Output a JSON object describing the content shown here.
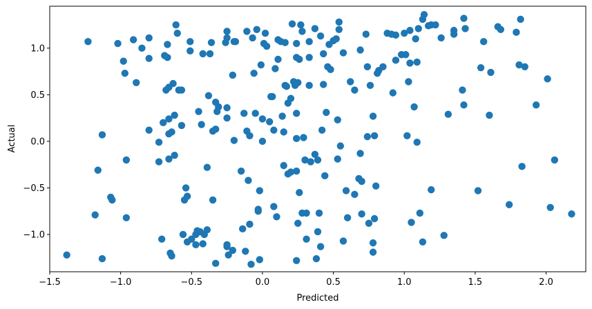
{
  "chart_data": {
    "type": "scatter",
    "xlabel": "Predicted",
    "ylabel": "Actual",
    "xlim": [
      -1.5,
      2.28
    ],
    "ylim": [
      -1.4,
      1.45
    ],
    "xticks": [
      -1.5,
      -1.0,
      -0.5,
      0.0,
      0.5,
      1.0,
      1.5,
      2.0
    ],
    "xtick_labels": [
      "−1.5",
      "−1.0",
      "−0.5",
      "0.0",
      "0.5",
      "1.0",
      "1.5",
      "2.0"
    ],
    "yticks": [
      -1.0,
      -0.5,
      0.0,
      0.5,
      1.0
    ],
    "ytick_labels": [
      "−1.0",
      "−0.5",
      "0.0",
      "0.5",
      "1.0"
    ],
    "grid": false,
    "marker_color": "#1f77b4",
    "points": [
      {
        "x": -1.38,
        "y": -1.22
      },
      {
        "x": -1.23,
        "y": 1.07
      },
      {
        "x": -1.18,
        "y": -0.79
      },
      {
        "x": -1.16,
        "y": -0.31
      },
      {
        "x": -1.13,
        "y": 0.07
      },
      {
        "x": -1.13,
        "y": -1.26
      },
      {
        "x": -1.07,
        "y": -0.6
      },
      {
        "x": -1.06,
        "y": -0.63
      },
      {
        "x": -1.02,
        "y": 1.05
      },
      {
        "x": -0.98,
        "y": 0.86
      },
      {
        "x": -0.97,
        "y": 0.73
      },
      {
        "x": -0.96,
        "y": -0.2
      },
      {
        "x": -0.96,
        "y": -0.82
      },
      {
        "x": -0.91,
        "y": 1.09
      },
      {
        "x": -0.89,
        "y": 0.63
      },
      {
        "x": -0.85,
        "y": 1.0
      },
      {
        "x": -0.8,
        "y": 1.11
      },
      {
        "x": -0.8,
        "y": 0.89
      },
      {
        "x": -0.8,
        "y": 0.12
      },
      {
        "x": -0.73,
        "y": -0.01
      },
      {
        "x": -0.73,
        "y": -0.22
      },
      {
        "x": -0.71,
        "y": -1.05
      },
      {
        "x": -0.7,
        "y": 0.2
      },
      {
        "x": -0.69,
        "y": 0.92
      },
      {
        "x": -0.68,
        "y": 0.55
      },
      {
        "x": -0.67,
        "y": 0.9
      },
      {
        "x": -0.67,
        "y": 1.04
      },
      {
        "x": -0.66,
        "y": 0.58
      },
      {
        "x": -0.66,
        "y": 0.24
      },
      {
        "x": -0.66,
        "y": 0.08
      },
      {
        "x": -0.66,
        "y": -0.19
      },
      {
        "x": -0.65,
        "y": -1.2
      },
      {
        "x": -0.64,
        "y": 0.1
      },
      {
        "x": -0.64,
        "y": -1.23
      },
      {
        "x": -0.63,
        "y": 0.62
      },
      {
        "x": -0.62,
        "y": 0.28
      },
      {
        "x": -0.62,
        "y": -0.15
      },
      {
        "x": -0.61,
        "y": 1.25
      },
      {
        "x": -0.6,
        "y": 1.16
      },
      {
        "x": -0.59,
        "y": 0.55
      },
      {
        "x": -0.57,
        "y": 0.55
      },
      {
        "x": -0.57,
        "y": 0.17
      },
      {
        "x": -0.56,
        "y": -1.0
      },
      {
        "x": -0.55,
        "y": -0.63
      },
      {
        "x": -0.54,
        "y": -0.5
      },
      {
        "x": -0.53,
        "y": -0.59
      },
      {
        "x": -0.53,
        "y": -1.08
      },
      {
        "x": -0.51,
        "y": 1.07
      },
      {
        "x": -0.51,
        "y": 0.97
      },
      {
        "x": -0.5,
        "y": -1.05
      },
      {
        "x": -0.47,
        "y": -1.11
      },
      {
        "x": -0.47,
        "y": -1.0
      },
      {
        "x": -0.46,
        "y": -0.96
      },
      {
        "x": -0.45,
        "y": 0.32
      },
      {
        "x": -0.44,
        "y": -0.97
      },
      {
        "x": -0.43,
        "y": 0.18
      },
      {
        "x": -0.42,
        "y": 0.94
      },
      {
        "x": -0.42,
        "y": -1.1
      },
      {
        "x": -0.41,
        "y": -1.0
      },
      {
        "x": -0.39,
        "y": -0.95
      },
      {
        "x": -0.39,
        "y": -0.28
      },
      {
        "x": -0.38,
        "y": 0.49
      },
      {
        "x": -0.37,
        "y": 0.94
      },
      {
        "x": -0.36,
        "y": 1.06
      },
      {
        "x": -0.35,
        "y": 0.11
      },
      {
        "x": -0.35,
        "y": -0.63
      },
      {
        "x": -0.33,
        "y": -1.31
      },
      {
        "x": -0.33,
        "y": 0.42
      },
      {
        "x": -0.33,
        "y": 0.13
      },
      {
        "x": -0.32,
        "y": 0.32
      },
      {
        "x": -0.31,
        "y": 0.37
      },
      {
        "x": -0.26,
        "y": 1.06
      },
      {
        "x": -0.25,
        "y": 1.18
      },
      {
        "x": -0.25,
        "y": 1.11
      },
      {
        "x": -0.25,
        "y": 0.25
      },
      {
        "x": -0.25,
        "y": 0.36
      },
      {
        "x": -0.25,
        "y": -1.11
      },
      {
        "x": -0.25,
        "y": -1.13
      },
      {
        "x": -0.24,
        "y": -1.22
      },
      {
        "x": -0.21,
        "y": 0.71
      },
      {
        "x": -0.21,
        "y": -1.17
      },
      {
        "x": -0.2,
        "y": 0.01
      },
      {
        "x": -0.2,
        "y": 1.07
      },
      {
        "x": -0.19,
        "y": 1.07
      },
      {
        "x": -0.15,
        "y": -0.32
      },
      {
        "x": -0.14,
        "y": -0.94
      },
      {
        "x": -0.13,
        "y": 0.3
      },
      {
        "x": -0.12,
        "y": -1.18
      },
      {
        "x": -0.11,
        "y": 1.18
      },
      {
        "x": -0.11,
        "y": 0.11
      },
      {
        "x": -0.1,
        "y": -0.42
      },
      {
        "x": -0.09,
        "y": 0.06
      },
      {
        "x": -0.09,
        "y": -0.89
      },
      {
        "x": -0.08,
        "y": -1.32
      },
      {
        "x": -0.07,
        "y": 1.11
      },
      {
        "x": -0.06,
        "y": 0.73
      },
      {
        "x": -0.05,
        "y": 0.3
      },
      {
        "x": -0.04,
        "y": 1.2
      },
      {
        "x": -0.03,
        "y": -0.73
      },
      {
        "x": -0.03,
        "y": -0.75
      },
      {
        "x": -0.02,
        "y": -0.53
      },
      {
        "x": -0.02,
        "y": -1.27
      },
      {
        "x": -0.01,
        "y": 0.82
      },
      {
        "x": 0.0,
        "y": 0.24
      },
      {
        "x": 0.0,
        "y": 0.0
      },
      {
        "x": 0.01,
        "y": 1.05
      },
      {
        "x": 0.02,
        "y": 1.16
      },
      {
        "x": 0.03,
        "y": 1.02
      },
      {
        "x": 0.05,
        "y": 0.21
      },
      {
        "x": 0.06,
        "y": 0.48
      },
      {
        "x": 0.07,
        "y": 0.48
      },
      {
        "x": 0.08,
        "y": 0.12
      },
      {
        "x": 0.08,
        "y": -0.7
      },
      {
        "x": 0.09,
        "y": 0.78
      },
      {
        "x": 0.1,
        "y": -0.81
      },
      {
        "x": 0.11,
        "y": 1.09
      },
      {
        "x": 0.11,
        "y": 0.88
      },
      {
        "x": 0.13,
        "y": 1.07
      },
      {
        "x": 0.14,
        "y": 0.27
      },
      {
        "x": 0.15,
        "y": 0.1
      },
      {
        "x": 0.15,
        "y": -0.26
      },
      {
        "x": 0.16,
        "y": 1.06
      },
      {
        "x": 0.16,
        "y": 0.6
      },
      {
        "x": 0.17,
        "y": 0.59
      },
      {
        "x": 0.18,
        "y": 0.41
      },
      {
        "x": 0.18,
        "y": -0.35
      },
      {
        "x": 0.2,
        "y": 0.46
      },
      {
        "x": 0.2,
        "y": -0.33
      },
      {
        "x": 0.21,
        "y": 1.26
      },
      {
        "x": 0.22,
        "y": 0.64
      },
      {
        "x": 0.23,
        "y": 0.6
      },
      {
        "x": 0.24,
        "y": 1.05
      },
      {
        "x": 0.24,
        "y": 0.9
      },
      {
        "x": 0.24,
        "y": 0.3
      },
      {
        "x": 0.24,
        "y": 0.03
      },
      {
        "x": 0.24,
        "y": -0.32
      },
      {
        "x": 0.24,
        "y": -1.28
      },
      {
        "x": 0.25,
        "y": 0.63
      },
      {
        "x": 0.25,
        "y": -0.88
      },
      {
        "x": 0.26,
        "y": 0.88
      },
      {
        "x": 0.26,
        "y": -0.55
      },
      {
        "x": 0.27,
        "y": 1.25
      },
      {
        "x": 0.28,
        "y": 1.18
      },
      {
        "x": 0.28,
        "y": -0.77
      },
      {
        "x": 0.29,
        "y": 0.04
      },
      {
        "x": 0.3,
        "y": -0.2
      },
      {
        "x": 0.31,
        "y": -1.05
      },
      {
        "x": 0.31,
        "y": -0.77
      },
      {
        "x": 0.33,
        "y": 1.07
      },
      {
        "x": 0.33,
        "y": 0.9
      },
      {
        "x": 0.33,
        "y": 0.6
      },
      {
        "x": 0.34,
        "y": -0.22
      },
      {
        "x": 0.37,
        "y": 1.21
      },
      {
        "x": 0.37,
        "y": -0.14
      },
      {
        "x": 0.38,
        "y": -1.26
      },
      {
        "x": 0.39,
        "y": -0.2
      },
      {
        "x": 0.39,
        "y": -0.97
      },
      {
        "x": 0.4,
        "y": -0.77
      },
      {
        "x": 0.41,
        "y": 1.13
      },
      {
        "x": 0.41,
        "y": -1.13
      },
      {
        "x": 0.42,
        "y": 0.12
      },
      {
        "x": 0.43,
        "y": 0.61
      },
      {
        "x": 0.43,
        "y": 0.94
      },
      {
        "x": 0.44,
        "y": -0.37
      },
      {
        "x": 0.45,
        "y": 0.31
      },
      {
        "x": 0.46,
        "y": 0.8
      },
      {
        "x": 0.47,
        "y": 1.04
      },
      {
        "x": 0.48,
        "y": 0.77
      },
      {
        "x": 0.5,
        "y": 1.08
      },
      {
        "x": 0.52,
        "y": 1.1
      },
      {
        "x": 0.53,
        "y": -0.19
      },
      {
        "x": 0.53,
        "y": 0.23
      },
      {
        "x": 0.54,
        "y": 1.2
      },
      {
        "x": 0.54,
        "y": 1.28
      },
      {
        "x": 0.55,
        "y": -0.05
      },
      {
        "x": 0.57,
        "y": 0.95
      },
      {
        "x": 0.57,
        "y": -1.07
      },
      {
        "x": 0.59,
        "y": -0.53
      },
      {
        "x": 0.6,
        "y": -0.82
      },
      {
        "x": 0.62,
        "y": 0.64
      },
      {
        "x": 0.65,
        "y": 0.55
      },
      {
        "x": 0.65,
        "y": -0.57
      },
      {
        "x": 0.68,
        "y": -0.4
      },
      {
        "x": 0.69,
        "y": 0.98
      },
      {
        "x": 0.69,
        "y": -0.13
      },
      {
        "x": 0.7,
        "y": -0.43
      },
      {
        "x": 0.7,
        "y": -0.78
      },
      {
        "x": 0.73,
        "y": 1.15
      },
      {
        "x": 0.74,
        "y": 0.05
      },
      {
        "x": 0.74,
        "y": 0.8
      },
      {
        "x": 0.75,
        "y": -0.88
      },
      {
        "x": 0.76,
        "y": 0.6
      },
      {
        "x": 0.78,
        "y": 0.27
      },
      {
        "x": 0.78,
        "y": -1.09
      },
      {
        "x": 0.78,
        "y": -1.19
      },
      {
        "x": 0.79,
        "y": 0.06
      },
      {
        "x": 0.79,
        "y": -0.83
      },
      {
        "x": 0.8,
        "y": -0.48
      },
      {
        "x": 0.81,
        "y": 0.73
      },
      {
        "x": 0.82,
        "y": 0.76
      },
      {
        "x": 0.85,
        "y": 0.8
      },
      {
        "x": 0.88,
        "y": 1.16
      },
      {
        "x": 0.91,
        "y": 1.15
      },
      {
        "x": 0.92,
        "y": 0.52
      },
      {
        "x": 0.94,
        "y": 0.87
      },
      {
        "x": 0.94,
        "y": 1.14
      },
      {
        "x": 0.98,
        "y": 0.93
      },
      {
        "x": 1.0,
        "y": 1.16
      },
      {
        "x": 1.01,
        "y": 0.93
      },
      {
        "x": 1.02,
        "y": 0.06
      },
      {
        "x": 1.03,
        "y": 0.64
      },
      {
        "x": 1.04,
        "y": 0.84
      },
      {
        "x": 1.04,
        "y": 1.19
      },
      {
        "x": 1.05,
        "y": -0.87
      },
      {
        "x": 1.07,
        "y": 0.37
      },
      {
        "x": 1.08,
        "y": 1.1
      },
      {
        "x": 1.09,
        "y": -0.01
      },
      {
        "x": 1.09,
        "y": 0.85
      },
      {
        "x": 1.1,
        "y": 1.21
      },
      {
        "x": 1.11,
        "y": -0.77
      },
      {
        "x": 1.13,
        "y": 1.31
      },
      {
        "x": 1.13,
        "y": -1.08
      },
      {
        "x": 1.14,
        "y": 1.36
      },
      {
        "x": 1.17,
        "y": 1.24
      },
      {
        "x": 1.19,
        "y": -0.52
      },
      {
        "x": 1.19,
        "y": 1.25
      },
      {
        "x": 1.22,
        "y": 1.25
      },
      {
        "x": 1.26,
        "y": 1.11
      },
      {
        "x": 1.28,
        "y": -1.01
      },
      {
        "x": 1.31,
        "y": 0.29
      },
      {
        "x": 1.35,
        "y": 1.19
      },
      {
        "x": 1.35,
        "y": 1.15
      },
      {
        "x": 1.41,
        "y": 0.55
      },
      {
        "x": 1.42,
        "y": 0.39
      },
      {
        "x": 1.42,
        "y": 1.32
      },
      {
        "x": 1.43,
        "y": 1.21
      },
      {
        "x": 1.52,
        "y": -0.53
      },
      {
        "x": 1.54,
        "y": 0.79
      },
      {
        "x": 1.56,
        "y": 1.07
      },
      {
        "x": 1.6,
        "y": 0.28
      },
      {
        "x": 1.61,
        "y": 0.74
      },
      {
        "x": 1.66,
        "y": 1.23
      },
      {
        "x": 1.68,
        "y": 1.2
      },
      {
        "x": 1.74,
        "y": -0.68
      },
      {
        "x": 1.79,
        "y": 1.17
      },
      {
        "x": 1.81,
        "y": 0.82
      },
      {
        "x": 1.82,
        "y": 1.31
      },
      {
        "x": 1.83,
        "y": -0.27
      },
      {
        "x": 1.85,
        "y": 0.8
      },
      {
        "x": 1.93,
        "y": 0.39
      },
      {
        "x": 2.01,
        "y": 0.67
      },
      {
        "x": 2.03,
        "y": -0.71
      },
      {
        "x": 2.06,
        "y": -0.2
      },
      {
        "x": 2.18,
        "y": -0.78
      }
    ]
  }
}
